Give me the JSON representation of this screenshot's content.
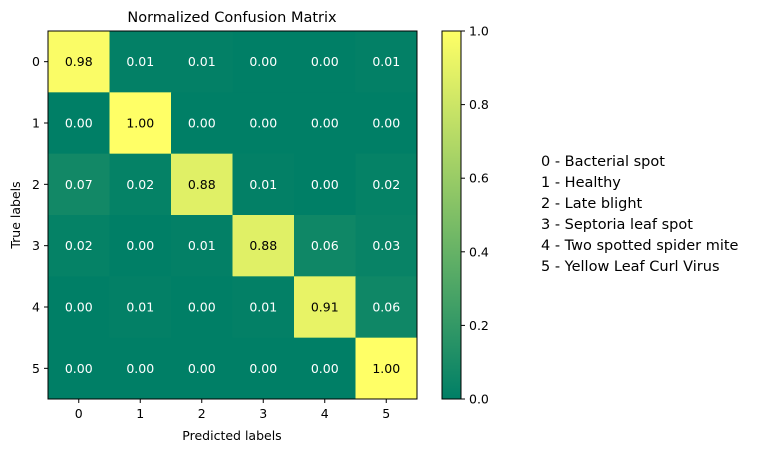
{
  "chart_data": {
    "type": "heatmap",
    "title": "Normalized Confusion Matrix",
    "xlabel": "Predicted labels",
    "ylabel": "True labels",
    "x_categories": [
      "0",
      "1",
      "2",
      "3",
      "4",
      "5"
    ],
    "y_categories": [
      "0",
      "1",
      "2",
      "3",
      "4",
      "5"
    ],
    "values": [
      [
        0.98,
        0.01,
        0.01,
        0.0,
        0.0,
        0.01
      ],
      [
        0.0,
        1.0,
        0.0,
        0.0,
        0.0,
        0.0
      ],
      [
        0.07,
        0.02,
        0.88,
        0.01,
        0.0,
        0.02
      ],
      [
        0.02,
        0.0,
        0.01,
        0.88,
        0.06,
        0.03
      ],
      [
        0.0,
        0.01,
        0.0,
        0.01,
        0.91,
        0.06
      ],
      [
        0.0,
        0.0,
        0.0,
        0.0,
        0.0,
        1.0
      ]
    ],
    "value_labels": [
      [
        "0.98",
        "0.01",
        "0.01",
        "0.00",
        "0.00",
        "0.01"
      ],
      [
        "0.00",
        "1.00",
        "0.00",
        "0.00",
        "0.00",
        "0.00"
      ],
      [
        "0.07",
        "0.02",
        "0.88",
        "0.01",
        "0.00",
        "0.02"
      ],
      [
        "0.02",
        "0.00",
        "0.01",
        "0.88",
        "0.06",
        "0.03"
      ],
      [
        "0.00",
        "0.01",
        "0.00",
        "0.01",
        "0.91",
        "0.06"
      ],
      [
        "0.00",
        "0.00",
        "0.00",
        "0.00",
        "0.00",
        "1.00"
      ]
    ],
    "colorbar": {
      "range": [
        0.0,
        1.0
      ],
      "ticks": [
        "0.0",
        "0.2",
        "0.4",
        "0.6",
        "0.8",
        "1.0"
      ],
      "colormap": "summer",
      "low_color": "#007f66",
      "high_color": "#ffff66"
    },
    "legend": [
      "0 - Bacterial spot",
      "1 - Healthy",
      "2 - Late blight",
      "3 - Septoria leaf spot",
      "4 - Two spotted spider mite",
      "5 - Yellow Leaf Curl Virus"
    ],
    "legend_placement": "right",
    "grid": false
  }
}
